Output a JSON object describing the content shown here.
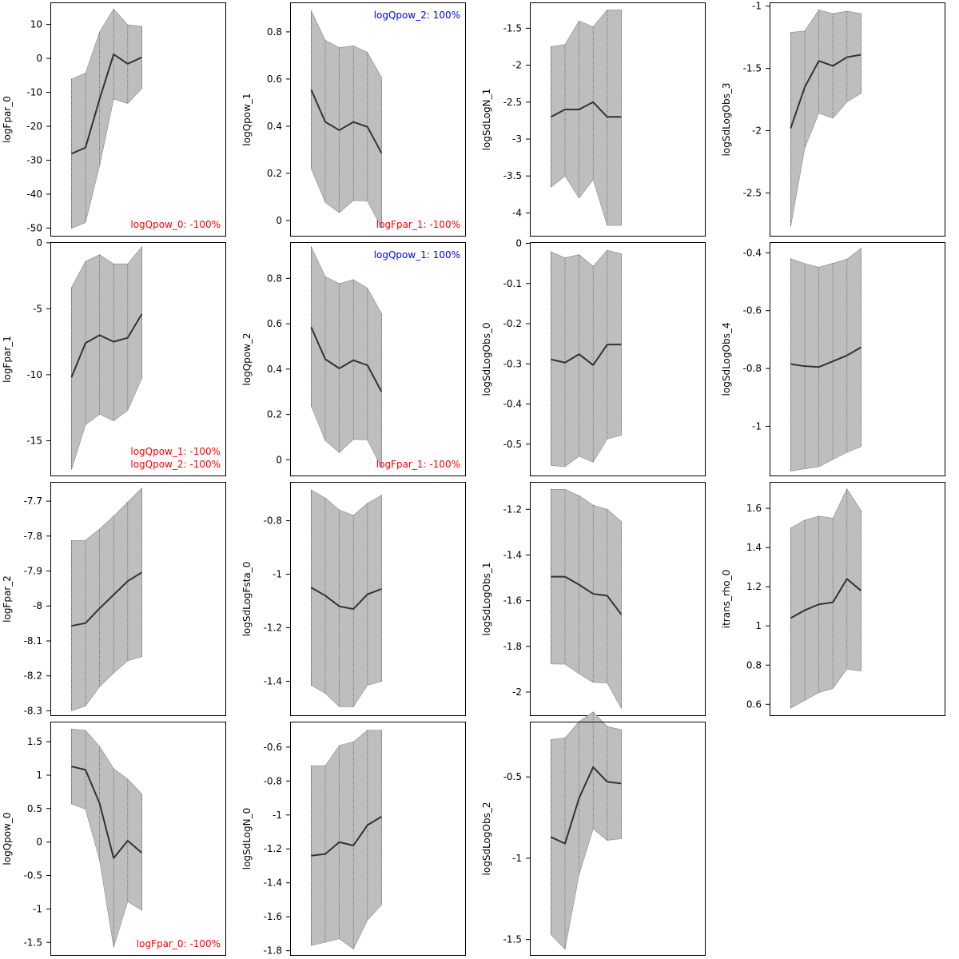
{
  "chart_data": [
    {
      "type": "area",
      "ylabel": "logFpar_0",
      "yticks": [
        10,
        0,
        -10,
        -20,
        -30,
        -40,
        -50
      ],
      "ylim": [
        -52.5,
        16.5
      ],
      "mean": [
        -28.1,
        -26.3,
        -12,
        1.2,
        -1.6,
        0.3
      ],
      "lower": [
        -50.1,
        -48.4,
        -31.7,
        -12,
        -13.3,
        -8.9
      ],
      "upper": [
        -6.1,
        -4.3,
        7.8,
        14.6,
        9.9,
        9.5
      ],
      "annotations": [
        {
          "text": "logQpow_0: -100%",
          "color": "#ff0000",
          "pos": "bottom-right"
        }
      ]
    },
    {
      "type": "area",
      "ylabel": "logQpow_1",
      "yticks": [
        0.8,
        0.6,
        0.4,
        0.2,
        0
      ],
      "ylim": [
        -0.068,
        0.925
      ],
      "mean": [
        0.555,
        0.418,
        0.383,
        0.418,
        0.397,
        0.286
      ],
      "lower": [
        0.22,
        0.077,
        0.033,
        0.085,
        0.082,
        -0.031
      ],
      "upper": [
        0.89,
        0.765,
        0.733,
        0.741,
        0.713,
        0.607
      ],
      "annotations": [
        {
          "text": "logQpow_2: 100%",
          "color": "#0000ff",
          "pos": "top-right"
        },
        {
          "text": "logFpar_1: -100%",
          "color": "#ff0000",
          "pos": "bottom-right"
        }
      ]
    },
    {
      "type": "area",
      "ylabel": "logSdLogN_1",
      "yticks": [
        -1.5,
        -2,
        -2.5,
        -3,
        -3.5,
        -4
      ],
      "ylim": [
        -4.32,
        -1.15
      ],
      "mean": [
        -2.7,
        -2.6,
        -2.6,
        -2.5,
        -2.7,
        -2.7
      ],
      "lower": [
        -3.65,
        -3.5,
        -3.8,
        -3.55,
        -4.17,
        -4.17
      ],
      "upper": [
        -1.75,
        -1.72,
        -1.4,
        -1.48,
        -1.25,
        -1.25
      ],
      "annotations": []
    },
    {
      "type": "area",
      "ylabel": "logSdLogObs_3",
      "yticks": [
        -1,
        -1.5,
        -2,
        -2.5
      ],
      "ylim": [
        -2.85,
        -0.97
      ],
      "mean": [
        -1.98,
        -1.65,
        -1.44,
        -1.48,
        -1.41,
        -1.39
      ],
      "lower": [
        -2.77,
        -2.14,
        -1.86,
        -1.9,
        -1.77,
        -1.7
      ],
      "upper": [
        -1.21,
        -1.2,
        -1.03,
        -1.06,
        -1.04,
        -1.06
      ],
      "annotations": []
    },
    {
      "type": "area",
      "ylabel": "logFpar_1",
      "yticks": [
        0,
        -5,
        -10,
        -15
      ],
      "ylim": [
        -17.7,
        0.05
      ],
      "mean": [
        -10.2,
        -7.6,
        -7,
        -7.5,
        -7.2,
        -5.4
      ],
      "lower": [
        -17.2,
        -13.8,
        -13,
        -13.5,
        -12.7,
        -10.3
      ],
      "upper": [
        -3.4,
        -1.4,
        -0.9,
        -1.6,
        -1.6,
        -0.3
      ],
      "annotations": [
        {
          "text": "logQpow_1: -100%",
          "color": "#ff0000",
          "pos": "bottom-right-2"
        },
        {
          "text": "logQpow_2: -100%",
          "color": "#ff0000",
          "pos": "bottom-right"
        }
      ]
    },
    {
      "type": "area",
      "ylabel": "logQpow_2",
      "yticks": [
        0.8,
        0.6,
        0.4,
        0.2,
        0
      ],
      "ylim": [
        -0.073,
        0.96
      ],
      "mean": [
        0.585,
        0.444,
        0.403,
        0.439,
        0.417,
        0.3
      ],
      "lower": [
        0.236,
        0.085,
        0.031,
        0.09,
        0.087,
        -0.034
      ],
      "upper": [
        0.94,
        0.808,
        0.777,
        0.795,
        0.757,
        0.645
      ],
      "annotations": [
        {
          "text": "logQpow_1: 100%",
          "color": "#0000ff",
          "pos": "top-right"
        },
        {
          "text": "logFpar_1: -100%",
          "color": "#ff0000",
          "pos": "bottom-right"
        }
      ]
    },
    {
      "type": "area",
      "ylabel": "logSdLogObs_0",
      "yticks": [
        0,
        -0.1,
        -0.2,
        -0.3,
        -0.4,
        -0.5
      ],
      "ylim": [
        -0.58,
        0.003
      ],
      "mean": [
        -0.289,
        -0.297,
        -0.276,
        -0.303,
        -0.252,
        -0.252
      ],
      "lower": [
        -0.553,
        -0.556,
        -0.53,
        -0.545,
        -0.487,
        -0.478
      ],
      "upper": [
        -0.021,
        -0.036,
        -0.028,
        -0.057,
        -0.017,
        -0.026
      ],
      "annotations": []
    },
    {
      "type": "area",
      "ylabel": "logSdLogObs_4",
      "yticks": [
        -0.4,
        -0.6,
        -0.8,
        -1
      ],
      "ylim": [
        -1.173,
        -0.363
      ],
      "mean": [
        -0.785,
        -0.792,
        -0.795,
        -0.775,
        -0.755,
        -0.727
      ],
      "lower": [
        -1.155,
        -1.147,
        -1.14,
        -1.115,
        -1.09,
        -1.07
      ],
      "upper": [
        -0.42,
        -0.437,
        -0.45,
        -0.436,
        -0.422,
        -0.384
      ],
      "annotations": []
    },
    {
      "type": "area",
      "ylabel": "logFpar_2",
      "yticks": [
        -7.7,
        -7.8,
        -7.9,
        -8,
        -8.1,
        -8.2,
        -8.3
      ],
      "ylim": [
        -8.315,
        -7.645
      ],
      "mean": [
        -8.057,
        -8.049,
        -8.007,
        -7.968,
        -7.929,
        -7.904
      ],
      "lower": [
        -8.3,
        -8.286,
        -8.231,
        -8.192,
        -8.157,
        -8.145
      ],
      "upper": [
        -7.813,
        -7.812,
        -7.78,
        -7.743,
        -7.703,
        -7.663
      ],
      "annotations": []
    },
    {
      "type": "area",
      "ylabel": "logSdLogFsta_0",
      "yticks": [
        -0.8,
        -1,
        -1.2,
        -1.4
      ],
      "ylim": [
        -1.53,
        -0.655
      ],
      "mean": [
        -1.05,
        -1.08,
        -1.12,
        -1.13,
        -1.075,
        -1.055
      ],
      "lower": [
        -1.415,
        -1.445,
        -1.495,
        -1.495,
        -1.415,
        -1.4
      ],
      "upper": [
        -0.685,
        -0.715,
        -0.76,
        -0.78,
        -0.735,
        -0.705
      ],
      "annotations": []
    },
    {
      "type": "area",
      "ylabel": "logSdLogObs_1",
      "yticks": [
        -1.2,
        -1.4,
        -1.6,
        -1.8,
        -2
      ],
      "ylim": [
        -2.105,
        -1.08
      ],
      "mean": [
        -1.495,
        -1.495,
        -1.53,
        -1.57,
        -1.578,
        -1.66
      ],
      "lower": [
        -1.877,
        -1.878,
        -1.92,
        -1.958,
        -1.96,
        -2.071
      ],
      "upper": [
        -1.112,
        -1.113,
        -1.14,
        -1.182,
        -1.2,
        -1.253
      ],
      "annotations": []
    },
    {
      "type": "area",
      "ylabel": "itrans_rho_0",
      "yticks": [
        1.6,
        1.4,
        1.2,
        1,
        0.8,
        0.6
      ],
      "ylim": [
        0.54,
        1.735
      ],
      "mean": [
        1.04,
        1.08,
        1.11,
        1.12,
        1.24,
        1.18
      ],
      "lower": [
        0.58,
        0.62,
        0.66,
        0.68,
        0.78,
        0.77
      ],
      "upper": [
        1.5,
        1.54,
        1.56,
        1.55,
        1.7,
        1.59
      ],
      "annotations": []
    },
    {
      "type": "area",
      "ylabel": "logQpow_0",
      "yticks": [
        1.5,
        1,
        0.5,
        0,
        -0.5,
        -1,
        -1.5
      ],
      "ylim": [
        -1.7,
        1.8
      ],
      "mean": [
        1.13,
        1.08,
        0.58,
        -0.24,
        0.02,
        -0.16
      ],
      "lower": [
        0.57,
        0.49,
        -0.27,
        -1.57,
        -0.89,
        -1.02
      ],
      "upper": [
        1.69,
        1.67,
        1.43,
        1.1,
        0.94,
        0.72
      ],
      "annotations": [
        {
          "text": "logFpar_0: -100%",
          "color": "#ff0000",
          "pos": "bottom-right"
        }
      ]
    },
    {
      "type": "area",
      "ylabel": "logSdLogN_0",
      "yticks": [
        -0.6,
        -0.8,
        -1,
        -1.2,
        -1.4,
        -1.6,
        -1.8
      ],
      "ylim": [
        -1.83,
        -0.45
      ],
      "mean": [
        -1.24,
        -1.23,
        -1.16,
        -1.18,
        -1.06,
        -1.01
      ],
      "lower": [
        -1.77,
        -1.75,
        -1.73,
        -1.79,
        -1.62,
        -1.53
      ],
      "upper": [
        -0.71,
        -0.71,
        -0.59,
        -0.57,
        -0.5,
        -0.5
      ],
      "annotations": []
    },
    {
      "type": "area",
      "ylabel": "logSdLogObs_2",
      "yticks": [
        -0.5,
        -1,
        -1.5
      ],
      "ylim": [
        -1.6,
        -0.16
      ],
      "mean": [
        -0.87,
        -0.91,
        -0.63,
        -0.44,
        -0.53,
        -0.54
      ],
      "lower": [
        -1.47,
        -1.56,
        -1.1,
        -0.82,
        -0.89,
        -0.88
      ],
      "upper": [
        -0.27,
        -0.26,
        -0.16,
        -0.1,
        -0.19,
        -0.21
      ],
      "annotations": []
    }
  ]
}
